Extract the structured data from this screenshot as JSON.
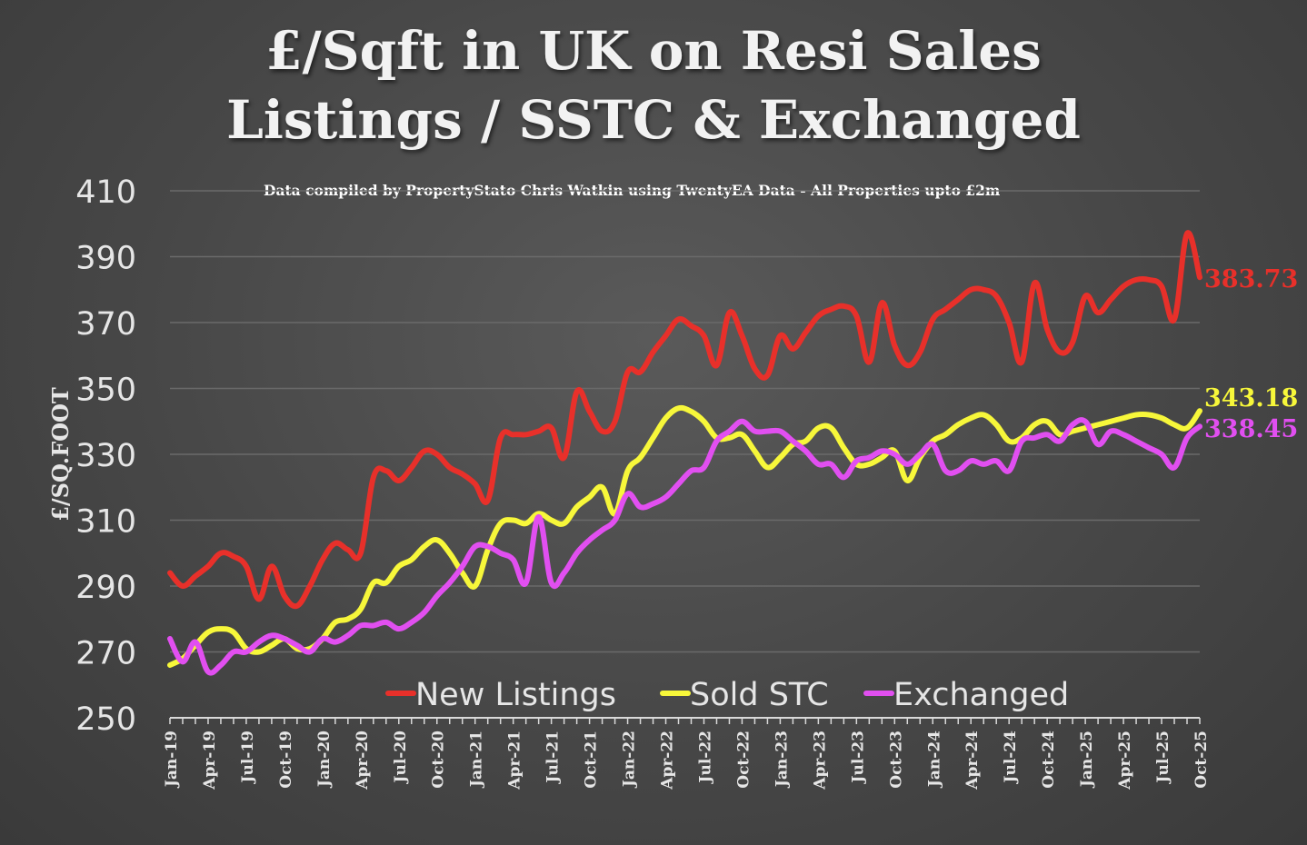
{
  "title_line1": "£/Sqft in UK on Resi Sales",
  "title_line2": "Listings / SSTC & Exchanged",
  "subtitle": "Data compiled by PropertyStato Chris Watkin using TwentyEA Data - All Properties upto £2m",
  "colors": {
    "new_listings": "#e8302a",
    "sold_stc": "#f7f73a",
    "exchanged": "#e14ff0",
    "grid": "#6a6a6a",
    "text": "#e6e6e6"
  },
  "chart_data": {
    "type": "line",
    "ylabel": "£/SQ.FOOT",
    "xlabel": "",
    "ylim": [
      250,
      410
    ],
    "yticks": [
      250,
      270,
      290,
      310,
      330,
      350,
      370,
      390,
      410
    ],
    "grid": "horizontal",
    "legend_position": "bottom",
    "x_tick_labels": [
      "Jan-19",
      "Apr-19",
      "Jul-19",
      "Oct-19",
      "Jan-20",
      "Apr-20",
      "Jul-20",
      "Oct-20",
      "Jan-21",
      "Apr-21",
      "Jul-21",
      "Oct-21",
      "Jan-22",
      "Apr-22",
      "Jul-22",
      "Oct-22",
      "Jan-23",
      "Apr-23",
      "Jul-23",
      "Oct-23",
      "Jan-24",
      "Apr-24",
      "Jul-24",
      "Oct-24",
      "Jan-25",
      "Apr-25",
      "Jul-25",
      "Oct-25"
    ],
    "x": [
      "Jan-19",
      "Feb-19",
      "Mar-19",
      "Apr-19",
      "May-19",
      "Jun-19",
      "Jul-19",
      "Aug-19",
      "Sep-19",
      "Oct-19",
      "Nov-19",
      "Dec-19",
      "Jan-20",
      "Feb-20",
      "Mar-20",
      "Apr-20",
      "May-20",
      "Jun-20",
      "Jul-20",
      "Aug-20",
      "Sep-20",
      "Oct-20",
      "Nov-20",
      "Dec-20",
      "Jan-21",
      "Feb-21",
      "Mar-21",
      "Apr-21",
      "May-21",
      "Jun-21",
      "Jul-21",
      "Aug-21",
      "Sep-21",
      "Oct-21",
      "Nov-21",
      "Dec-21",
      "Jan-22",
      "Feb-22",
      "Mar-22",
      "Apr-22",
      "May-22",
      "Jun-22",
      "Jul-22",
      "Aug-22",
      "Sep-22",
      "Oct-22",
      "Nov-22",
      "Dec-22",
      "Jan-23",
      "Feb-23",
      "Mar-23",
      "Apr-23",
      "May-23",
      "Jun-23",
      "Jul-23",
      "Aug-23",
      "Sep-23",
      "Oct-23",
      "Nov-23",
      "Dec-23",
      "Jan-24",
      "Feb-24",
      "Mar-24",
      "Apr-24",
      "May-24",
      "Jun-24",
      "Jul-24",
      "Aug-24",
      "Sep-24",
      "Oct-24",
      "Nov-24",
      "Dec-24",
      "Jan-25",
      "Feb-25",
      "Mar-25",
      "Apr-25",
      "May-25",
      "Jun-25",
      "Jul-25",
      "Aug-25",
      "Sep-25",
      "Oct-25"
    ],
    "series": [
      {
        "name": "New Listings",
        "end_label": "383.73",
        "values": [
          294,
          290,
          293,
          296,
          300,
          299,
          296,
          286,
          296,
          287,
          284,
          290,
          298,
          303,
          301,
          300,
          323,
          325,
          322,
          326,
          331,
          330,
          326,
          324,
          321,
          316,
          335,
          336,
          336,
          337,
          338,
          329,
          349,
          343,
          337,
          340,
          355,
          355,
          361,
          366,
          371,
          369,
          366,
          357,
          373,
          366,
          356,
          354,
          366,
          362,
          367,
          372,
          374,
          375,
          372,
          358,
          376,
          363,
          357,
          361,
          371,
          374,
          377,
          380,
          380,
          378,
          370,
          358,
          382,
          368,
          361,
          364,
          378,
          373,
          377,
          381,
          383,
          383,
          381,
          371,
          397,
          383.73
        ]
      },
      {
        "name": "Sold STC",
        "end_label": "343.18",
        "values": [
          266,
          268,
          272,
          276,
          277,
          276,
          271,
          270,
          272,
          274,
          271,
          271,
          274,
          279,
          280,
          283,
          291,
          291,
          296,
          298,
          302,
          304,
          300,
          294,
          290,
          301,
          309,
          310,
          309,
          312,
          310,
          309,
          314,
          317,
          320,
          312,
          325,
          329,
          335,
          341,
          344,
          343,
          340,
          335,
          335,
          336,
          331,
          326,
          329,
          333,
          334,
          338,
          338,
          332,
          327,
          327,
          329,
          331,
          322,
          329,
          334,
          336,
          339,
          341,
          342,
          339,
          334,
          335,
          339,
          340,
          336,
          337,
          338,
          339,
          340,
          341,
          342,
          342,
          341,
          339,
          338,
          343.18
        ]
      },
      {
        "name": "Exchanged",
        "end_label": "338.45",
        "values": [
          274,
          267,
          273,
          264,
          266,
          270,
          270,
          273,
          275,
          274,
          272,
          270,
          274,
          273,
          275,
          278,
          278,
          279,
          277,
          279,
          282,
          287,
          291,
          296,
          302,
          302,
          300,
          298,
          291,
          311,
          291,
          294,
          300,
          304,
          307,
          310,
          318,
          314,
          315,
          317,
          321,
          325,
          326,
          334,
          337,
          340,
          337,
          337,
          337,
          334,
          331,
          327,
          327,
          323,
          328,
          329,
          331,
          330,
          327,
          330,
          333,
          325,
          325,
          328,
          327,
          328,
          325,
          334,
          335,
          336,
          334,
          339,
          340,
          333,
          337,
          336,
          334,
          332,
          330,
          326,
          335,
          338.45
        ]
      }
    ]
  }
}
